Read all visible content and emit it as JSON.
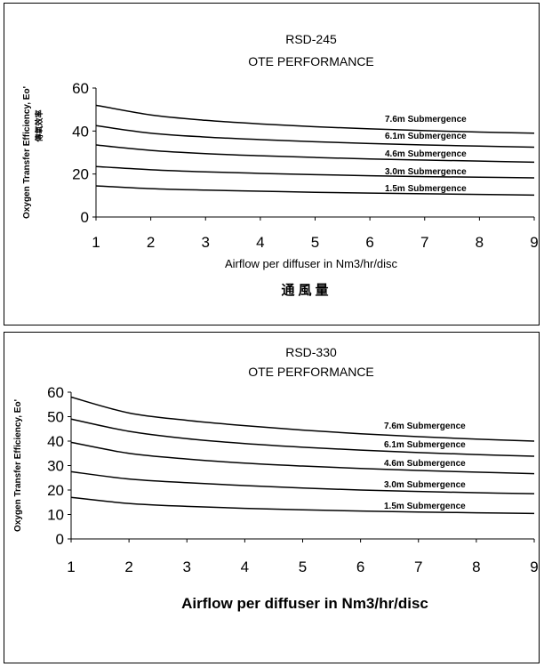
{
  "chart_data": [
    {
      "type": "line",
      "title": "RSD-245",
      "subtitle": "OTE PERFORMANCE",
      "xlabel": "Airflow per diffuser in Nm3/hr/disc",
      "xlabel_cn": "通風量",
      "ylabel": "Oxygen Transfer Efficiency, Eo'",
      "ylabel_cn": "傳氧效率",
      "xlim": [
        1,
        9
      ],
      "ylim": [
        0,
        60
      ],
      "xticks": [
        "1",
        "2",
        "3",
        "4",
        "5",
        "6",
        "7",
        "8",
        "9"
      ],
      "yticks": [
        "0",
        "20",
        "40",
        "60"
      ],
      "grid": false,
      "x": [
        1,
        2,
        3,
        4,
        5,
        6,
        7,
        8,
        9
      ],
      "series": [
        {
          "name": "7.6m Submergence",
          "values": [
            52,
            47.5,
            45,
            43.3,
            42,
            41,
            40.2,
            39.5,
            39
          ]
        },
        {
          "name": "6.1m Submergence",
          "values": [
            42.5,
            39,
            37.2,
            36,
            35,
            34.2,
            33.5,
            33,
            32.5
          ]
        },
        {
          "name": "4.6m Submergence",
          "values": [
            33.5,
            31,
            29.5,
            28.5,
            27.7,
            27,
            26.5,
            26,
            25.5
          ]
        },
        {
          "name": "3.0m Submergence",
          "values": [
            23.5,
            22,
            21,
            20.3,
            19.7,
            19.2,
            18.8,
            18.5,
            18.2
          ]
        },
        {
          "name": "1.5m Submergence",
          "values": [
            14.5,
            13.2,
            12.5,
            12,
            11.5,
            11.1,
            10.8,
            10.5,
            10.2
          ]
        }
      ]
    },
    {
      "type": "line",
      "title": "RSD-330",
      "subtitle": "OTE PERFORMANCE",
      "xlabel": "Airflow per diffuser in Nm3/hr/disc",
      "ylabel": "Oxygen Transfer Efficiency, Eo'",
      "xlim": [
        1,
        9
      ],
      "ylim": [
        0,
        60
      ],
      "xticks": [
        "1",
        "2",
        "3",
        "4",
        "5",
        "6",
        "7",
        "8",
        "9"
      ],
      "yticks": [
        "0",
        "10",
        "20",
        "30",
        "40",
        "50",
        "60"
      ],
      "grid": false,
      "x": [
        1,
        2,
        3,
        4,
        5,
        6,
        7,
        8,
        9
      ],
      "series": [
        {
          "name": "7.6m Submergence",
          "values": [
            58,
            51.5,
            48.5,
            46.3,
            44.5,
            43,
            41.8,
            40.8,
            40
          ]
        },
        {
          "name": "6.1m Submergence",
          "values": [
            49,
            44,
            41,
            39,
            37.5,
            36.3,
            35.3,
            34.5,
            33.8
          ]
        },
        {
          "name": "4.6m Submergence",
          "values": [
            39.5,
            35,
            32.7,
            31,
            29.8,
            28.8,
            28,
            27.3,
            26.7
          ]
        },
        {
          "name": "3.0m Submergence",
          "values": [
            27.5,
            24.5,
            23,
            21.8,
            20.8,
            20,
            19.4,
            18.9,
            18.5
          ]
        },
        {
          "name": "1.5m Submergence",
          "values": [
            17,
            14.5,
            13.3,
            12.5,
            11.9,
            11.4,
            11,
            10.7,
            10.4
          ]
        }
      ]
    }
  ]
}
